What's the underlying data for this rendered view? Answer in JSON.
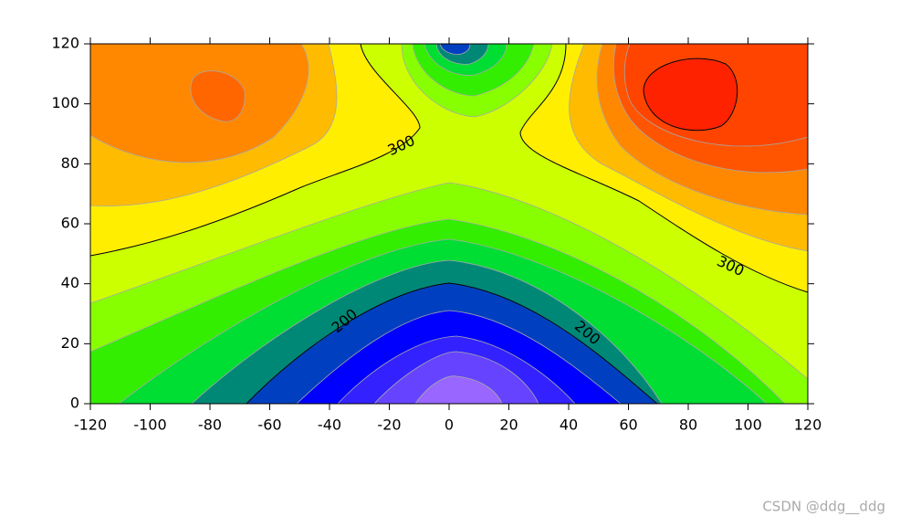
{
  "chart_data": {
    "type": "contour",
    "xlim": [
      -120,
      120
    ],
    "ylim": [
      0,
      120
    ],
    "xticks": [
      -120,
      -100,
      -80,
      -60,
      -40,
      -20,
      0,
      20,
      40,
      60,
      80,
      100,
      120
    ],
    "yticks": [
      0,
      20,
      40,
      60,
      80,
      100,
      120
    ],
    "contour_levels": [
      200,
      300
    ]
  },
  "watermark": "CSDN @ddg__ddg"
}
